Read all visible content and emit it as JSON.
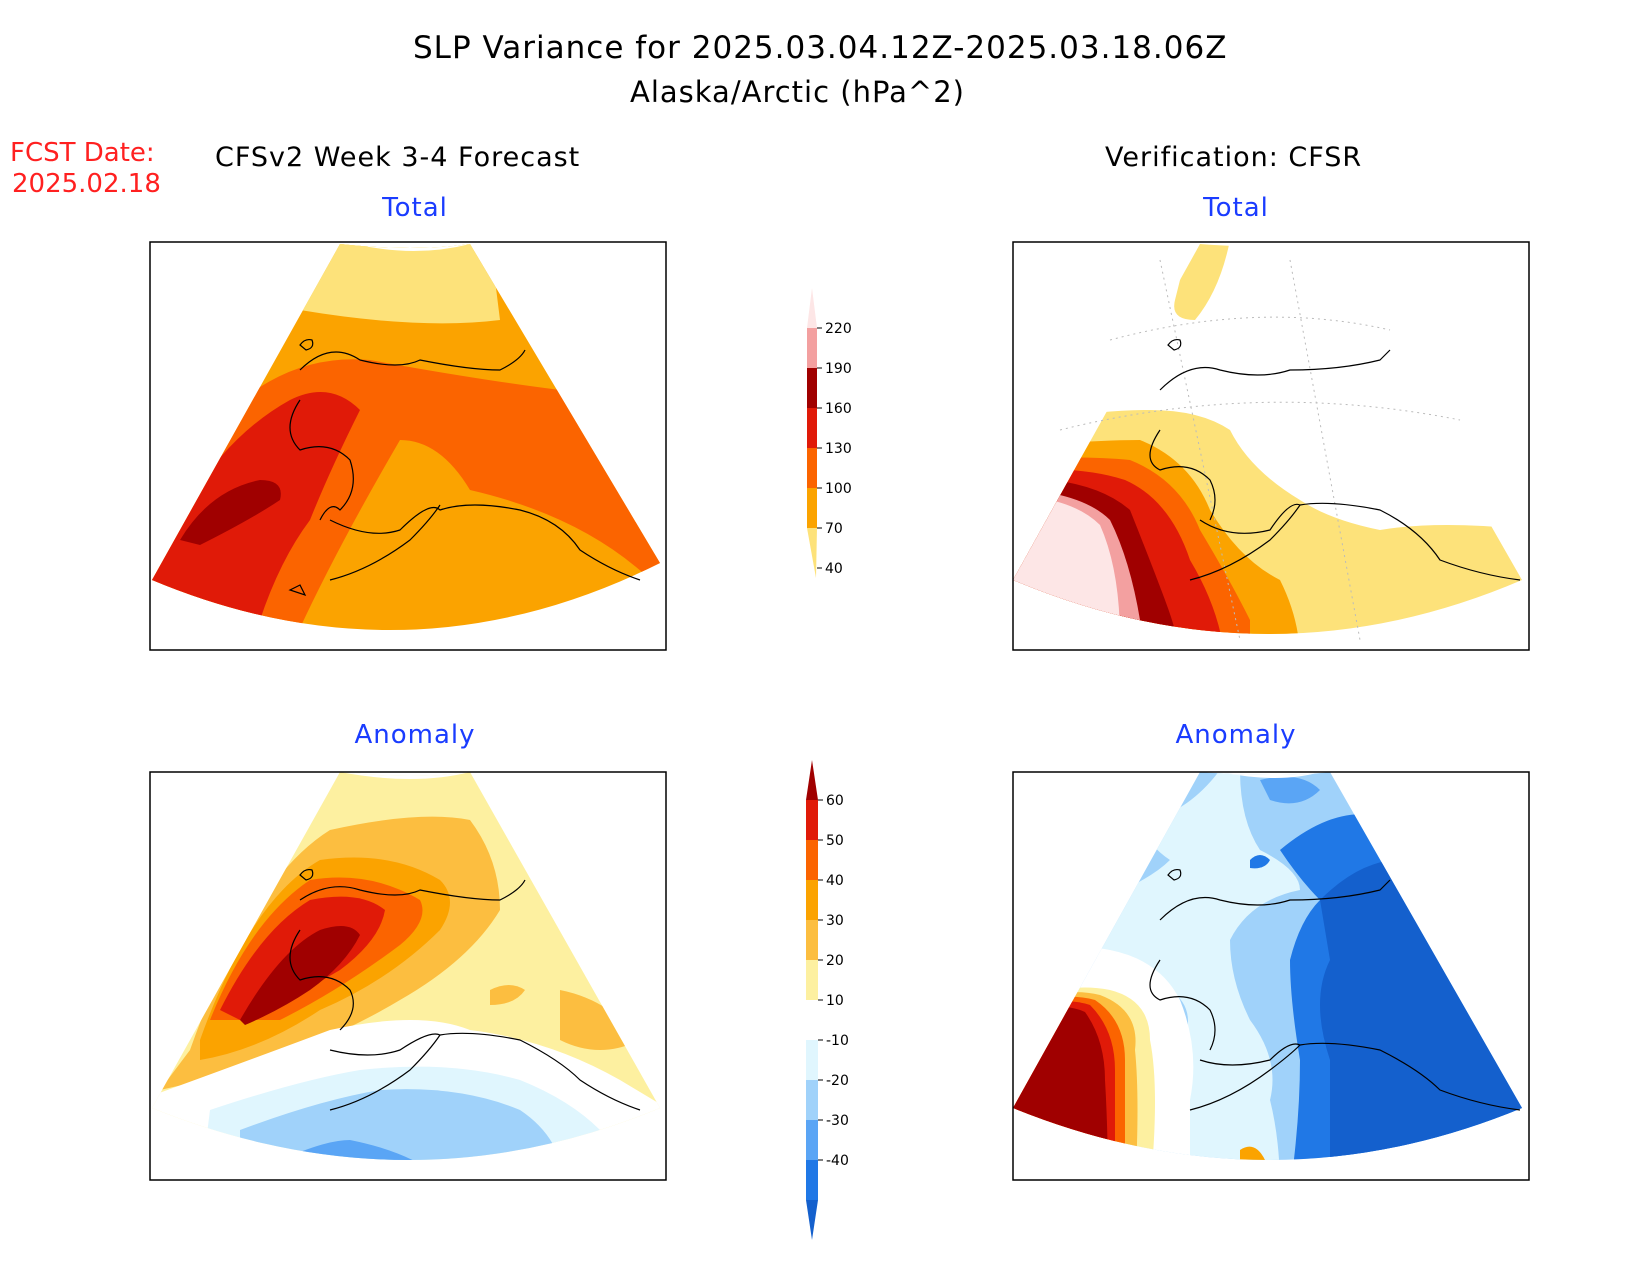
{
  "header": {
    "title": "SLP Variance for 2025.03.04.12Z-2025.03.18.06Z",
    "subtitle": "Alaska/Arctic (hPa^2)"
  },
  "forecast_date": {
    "label": "FCST Date:",
    "value": "2025.02.18"
  },
  "columns": {
    "left": "CFSv2 Week 3-4 Forecast",
    "right": "Verification: CFSR"
  },
  "panels": {
    "top_left": "Total",
    "top_right": "Total",
    "bottom_left": "Anomaly",
    "bottom_right": "Anomaly"
  },
  "total_colorbar": {
    "labels": [
      "220",
      "190",
      "160",
      "130",
      "100",
      "70",
      "40"
    ],
    "colors": [
      "#fde6e6",
      "#f3a0a0",
      "#a00000",
      "#e01a08",
      "#fb6400",
      "#fba300",
      "#fde27a"
    ]
  },
  "anomaly_colorbar": {
    "labels": [
      "60",
      "50",
      "40",
      "30",
      "20",
      "10",
      "-10",
      "-20",
      "-30",
      "-40"
    ],
    "colors": [
      "#a00000",
      "#e01a08",
      "#fb6400",
      "#fba300",
      "#fcbe40",
      "#fdf0a0",
      "#ffffff",
      "#e0f6fe",
      "#a0d2fa",
      "#5aa5f5",
      "#2078e6",
      "#1460cd"
    ]
  }
}
